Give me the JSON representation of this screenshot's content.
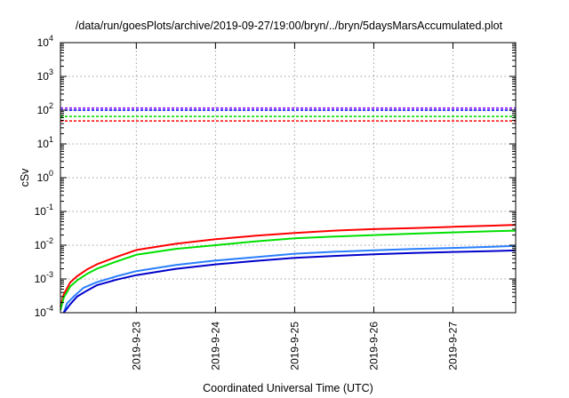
{
  "chart_data": {
    "type": "line",
    "title": "/data/run/goesPlots/archive/2019-09-27/19:00/bryn/../bryn/5daysMarsAccumulated.plot",
    "xlabel": "Coordinated Universal Time (UTC)",
    "ylabel": "cSv",
    "yscale": "log",
    "ylim": [
      0.0001,
      10000
    ],
    "xlim": [
      "2019-09-22 01:00",
      "2019-09-27 19:00"
    ],
    "x_ticks": [
      "2019-9-23",
      "2019-9-24",
      "2019-9-25",
      "2019-9-26",
      "2019-9-27"
    ],
    "y_ticks": [
      {
        "base": "10",
        "exp": "-4",
        "value": 0.0001
      },
      {
        "base": "10",
        "exp": "-3",
        "value": 0.001
      },
      {
        "base": "10",
        "exp": "-2",
        "value": 0.01
      },
      {
        "base": "10",
        "exp": "-1",
        "value": 0.1
      },
      {
        "base": "10",
        "exp": "0",
        "value": 1
      },
      {
        "base": "10",
        "exp": "1",
        "value": 10
      },
      {
        "base": "10",
        "exp": "2",
        "value": 100
      },
      {
        "base": "10",
        "exp": "3",
        "value": 1000
      },
      {
        "base": "10",
        "exp": "4",
        "value": 10000
      }
    ],
    "grid": true,
    "thresholds": [
      {
        "color": "#8000ff",
        "value": 115
      },
      {
        "color": "#0000ff",
        "value": 100
      },
      {
        "color": "#00e000",
        "value": 65
      },
      {
        "color": "#ff0000",
        "value": 48
      }
    ],
    "series": [
      {
        "color": "#ff0000",
        "x": [
          "2019-09-22 01:00",
          "2019-09-22 02:00",
          "2019-09-22 04:00",
          "2019-09-22 06:00",
          "2019-09-22 09:00",
          "2019-09-22 12:00",
          "2019-09-22 18:00",
          "2019-09-23 00:00",
          "2019-09-23 12:00",
          "2019-09-24 00:00",
          "2019-09-24 12:00",
          "2019-09-25 00:00",
          "2019-09-25 12:00",
          "2019-09-26 00:00",
          "2019-09-26 12:00",
          "2019-09-27 00:00",
          "2019-09-27 12:00",
          "2019-09-27 19:00"
        ],
        "y": [
          0.00015,
          0.00035,
          0.0008,
          0.0012,
          0.0019,
          0.0027,
          0.0045,
          0.0072,
          0.011,
          0.015,
          0.019,
          0.023,
          0.027,
          0.03,
          0.032,
          0.035,
          0.038,
          0.04
        ]
      },
      {
        "color": "#00e000",
        "x": [
          "2019-09-22 01:00",
          "2019-09-22 02:00",
          "2019-09-22 04:00",
          "2019-09-22 06:00",
          "2019-09-22 09:00",
          "2019-09-22 12:00",
          "2019-09-22 18:00",
          "2019-09-23 00:00",
          "2019-09-23 12:00",
          "2019-09-24 00:00",
          "2019-09-24 12:00",
          "2019-09-25 00:00",
          "2019-09-25 12:00",
          "2019-09-26 00:00",
          "2019-09-26 12:00",
          "2019-09-27 00:00",
          "2019-09-27 12:00",
          "2019-09-27 19:00"
        ],
        "y": [
          0.00012,
          0.00028,
          0.0006,
          0.0009,
          0.0014,
          0.002,
          0.0033,
          0.0052,
          0.0078,
          0.01,
          0.013,
          0.016,
          0.018,
          0.02,
          0.022,
          0.024,
          0.026,
          0.027
        ]
      },
      {
        "color": "#2a7fff",
        "x": [
          "2019-09-22 02:00",
          "2019-09-22 03:00",
          "2019-09-22 05:00",
          "2019-09-22 08:00",
          "2019-09-22 12:00",
          "2019-09-22 18:00",
          "2019-09-23 00:00",
          "2019-09-23 12:00",
          "2019-09-24 00:00",
          "2019-09-24 12:00",
          "2019-09-25 00:00",
          "2019-09-25 12:00",
          "2019-09-26 00:00",
          "2019-09-26 12:00",
          "2019-09-27 00:00",
          "2019-09-27 12:00",
          "2019-09-27 19:00"
        ],
        "y": [
          0.0001,
          0.00019,
          0.0003,
          0.00055,
          0.0008,
          0.0012,
          0.0017,
          0.0026,
          0.0035,
          0.0044,
          0.0056,
          0.0064,
          0.0071,
          0.0077,
          0.0083,
          0.009,
          0.0095
        ]
      },
      {
        "color": "#0000cc",
        "x": [
          "2019-09-22 02:00",
          "2019-09-22 04:00",
          "2019-09-22 06:00",
          "2019-09-22 09:00",
          "2019-09-22 12:00",
          "2019-09-22 18:00",
          "2019-09-23 00:00",
          "2019-09-23 12:00",
          "2019-09-24 00:00",
          "2019-09-24 12:00",
          "2019-09-25 00:00",
          "2019-09-25 12:00",
          "2019-09-26 00:00",
          "2019-09-26 12:00",
          "2019-09-27 00:00",
          "2019-09-27 12:00",
          "2019-09-27 19:00"
        ],
        "y": [
          0.0001,
          0.00018,
          0.0003,
          0.00045,
          0.00065,
          0.00095,
          0.0013,
          0.002,
          0.0027,
          0.0034,
          0.0042,
          0.0048,
          0.0054,
          0.0059,
          0.0063,
          0.0067,
          0.007
        ]
      }
    ]
  }
}
